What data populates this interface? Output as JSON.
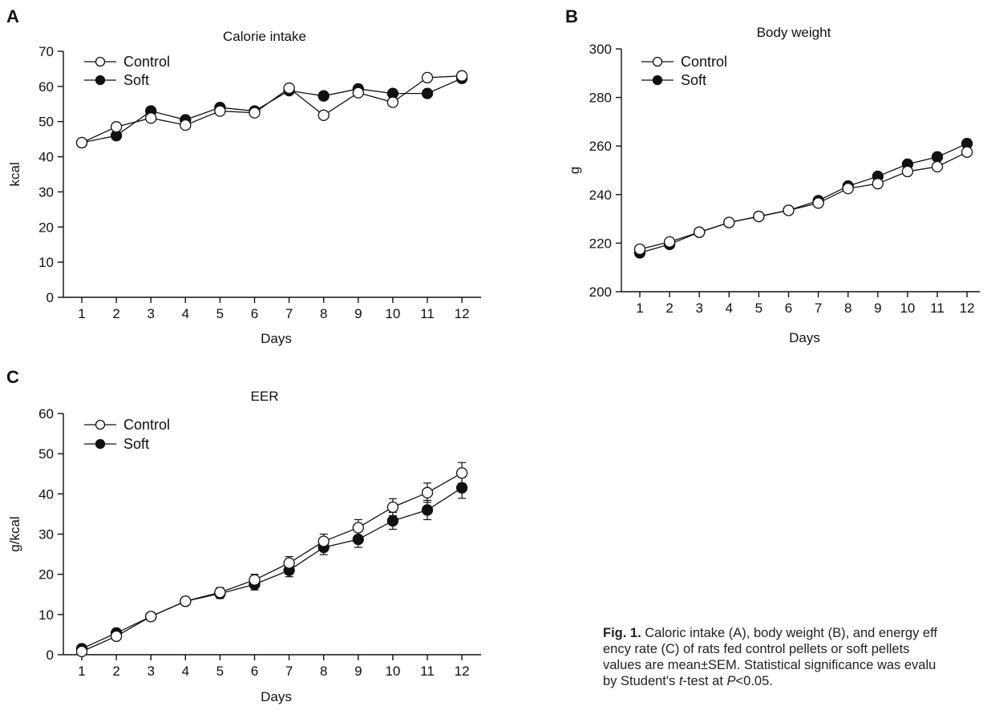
{
  "panels": [
    {
      "letter": "A"
    },
    {
      "letter": "B"
    },
    {
      "letter": "C"
    }
  ],
  "chart_data": [
    {
      "type": "line",
      "title": "Calorie intake",
      "xlabel": "Days",
      "ylabel": "kcal",
      "ylim": [
        0,
        70
      ],
      "yticks": [
        0,
        10,
        20,
        30,
        40,
        50,
        60,
        70
      ],
      "categories": [
        "1",
        "2",
        "3",
        "4",
        "5",
        "6",
        "7",
        "8",
        "9",
        "10",
        "11",
        "12"
      ],
      "legend_position": "top-left",
      "grid": false,
      "series": [
        {
          "name": "Control",
          "marker": "open-circle",
          "values": [
            44,
            48.5,
            51,
            49,
            53,
            52.5,
            59.5,
            51.8,
            58.2,
            55.5,
            62.5,
            63
          ]
        },
        {
          "name": "Soft",
          "marker": "filled-circle",
          "values": [
            44,
            46,
            53,
            50.5,
            54,
            53,
            58.8,
            57.3,
            59.3,
            58,
            58,
            62.3
          ]
        }
      ]
    },
    {
      "type": "line",
      "title": "Body weight",
      "xlabel": "Days",
      "ylabel": "g",
      "ylim": [
        200,
        300
      ],
      "yticks": [
        200,
        220,
        240,
        260,
        280,
        300
      ],
      "categories": [
        "1",
        "2",
        "3",
        "4",
        "5",
        "6",
        "7",
        "8",
        "9",
        "10",
        "11",
        "12"
      ],
      "legend_position": "top-left",
      "grid": false,
      "series": [
        {
          "name": "Control",
          "marker": "open-circle",
          "values": [
            217.5,
            220.5,
            224.5,
            228.5,
            231,
            233.5,
            236.5,
            242.5,
            244.5,
            249.5,
            251.5,
            257.5
          ]
        },
        {
          "name": "Soft",
          "marker": "filled-circle",
          "values": [
            216,
            219.5,
            224.5,
            228.5,
            231,
            233.5,
            237.5,
            243.5,
            247.5,
            252.5,
            255.5,
            261
          ]
        }
      ]
    },
    {
      "type": "line",
      "title": "EER",
      "xlabel": "Days",
      "ylabel": "g/kcal",
      "ylim": [
        0,
        60
      ],
      "yticks": [
        0,
        10,
        20,
        30,
        40,
        50,
        60
      ],
      "categories": [
        "1",
        "2",
        "3",
        "4",
        "5",
        "6",
        "7",
        "8",
        "9",
        "10",
        "11",
        "12"
      ],
      "legend_position": "top-left",
      "grid": false,
      "error_bars": true,
      "series": [
        {
          "name": "Control",
          "marker": "open-circle",
          "values": [
            0.8,
            4.6,
            9.5,
            13.3,
            15.5,
            18.6,
            22.8,
            28.2,
            31.6,
            36.7,
            40.3,
            45.2
          ],
          "errors": [
            0.5,
            0.6,
            0.6,
            0.7,
            1.2,
            1.4,
            1.6,
            1.8,
            2.0,
            2.1,
            2.4,
            2.6
          ]
        },
        {
          "name": "Soft",
          "marker": "filled-circle",
          "values": [
            1.5,
            5.4,
            9.5,
            13.3,
            15.2,
            17.5,
            21.0,
            26.7,
            28.7,
            33.3,
            36.0,
            41.5
          ],
          "errors": [
            0.5,
            0.6,
            0.6,
            0.7,
            1.2,
            1.4,
            1.6,
            1.8,
            2.0,
            2.1,
            2.4,
            2.6
          ]
        }
      ]
    }
  ],
  "caption": {
    "line1": {
      "bold": "Fig. 1.",
      "rest": " Caloric intake (A), body weight (B), and energy eff"
    },
    "line2": "ency rate (C) of rats fed control pellets or soft pellets",
    "line3": "values are mean±SEM. Statistical significance was evalu",
    "line4": {
      "pre": "by Student's ",
      "t": "t",
      "mid": "-test at ",
      "p": "P",
      "post": "<0.05."
    }
  }
}
